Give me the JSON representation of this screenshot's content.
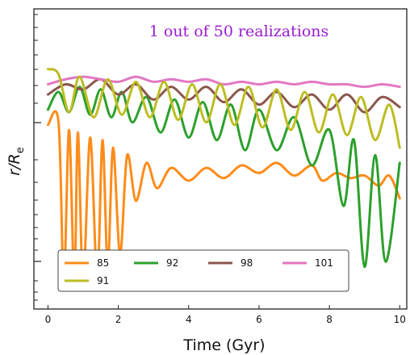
{
  "chart_data": {
    "type": "line",
    "title": "",
    "annotation": "1 out of 50 realizations",
    "annotation_color": "#9b1bd1",
    "xlabel": "Time (Gyr)",
    "ylabel": "r/R_e",
    "ylabel_main": "r/R",
    "ylabel_sub": "e",
    "xlim": [
      -0.4,
      10.2
    ],
    "xticks": [
      0,
      2,
      4,
      6,
      8,
      10
    ],
    "ylim": [
      0,
      1
    ],
    "y_tick_labels_shown": false,
    "grid": false,
    "legend": {
      "position": "bottom-left",
      "ncol": 4
    },
    "series": [
      {
        "name": "85",
        "color": "#ff8c1a",
        "x": [
          0,
          0.3,
          0.45,
          0.6,
          0.75,
          0.85,
          1.0,
          1.2,
          1.4,
          1.55,
          1.7,
          1.85,
          2.05,
          2.25,
          2.5,
          2.8,
          3.1,
          3.5,
          4.0,
          4.5,
          5.0,
          5.5,
          6.0,
          6.5,
          7.0,
          7.5,
          7.8,
          8.2,
          8.6,
          9.0,
          9.4,
          9.7,
          10.0
        ],
        "y": [
          0.66,
          0.67,
          0.04,
          0.64,
          0.03,
          0.63,
          0.04,
          0.61,
          0.05,
          0.6,
          0.1,
          0.57,
          0.15,
          0.54,
          0.36,
          0.51,
          0.41,
          0.49,
          0.44,
          0.49,
          0.45,
          0.5,
          0.47,
          0.51,
          0.46,
          0.5,
          0.44,
          0.47,
          0.45,
          0.46,
          0.42,
          0.46,
          0.37
        ]
      },
      {
        "name": "92",
        "color": "#2ca02c",
        "x": [
          0,
          0.3,
          0.6,
          0.9,
          1.2,
          1.5,
          1.8,
          2.1,
          2.4,
          2.8,
          3.2,
          3.6,
          4.0,
          4.4,
          4.8,
          5.2,
          5.6,
          6.0,
          6.5,
          7.0,
          7.5,
          8.0,
          8.4,
          8.7,
          9.0,
          9.3,
          9.6,
          10.0
        ],
        "y": [
          0.72,
          0.79,
          0.71,
          0.81,
          0.7,
          0.8,
          0.69,
          0.79,
          0.67,
          0.77,
          0.63,
          0.76,
          0.61,
          0.75,
          0.6,
          0.74,
          0.56,
          0.72,
          0.56,
          0.69,
          0.5,
          0.64,
          0.34,
          0.6,
          0.1,
          0.54,
          0.12,
          0.51
        ]
      },
      {
        "name": "98",
        "color": "#8c564b",
        "x": [
          0,
          0.5,
          1.0,
          1.5,
          2.0,
          2.5,
          3.0,
          3.5,
          4.0,
          4.5,
          5.0,
          5.5,
          6.0,
          6.5,
          7.0,
          7.5,
          8.0,
          8.5,
          9.0,
          9.5,
          10.0
        ],
        "y": [
          0.78,
          0.82,
          0.8,
          0.84,
          0.78,
          0.82,
          0.76,
          0.81,
          0.76,
          0.81,
          0.75,
          0.8,
          0.74,
          0.79,
          0.73,
          0.78,
          0.72,
          0.78,
          0.71,
          0.77,
          0.73
        ]
      },
      {
        "name": "101",
        "color": "#e377c2",
        "x": [
          0,
          0.5,
          1.0,
          1.5,
          2.0,
          2.5,
          3.0,
          3.5,
          4.0,
          4.5,
          5.0,
          5.5,
          6.0,
          6.5,
          7.0,
          7.5,
          8.0,
          8.5,
          9.0,
          9.5,
          10.0
        ],
        "y": [
          0.82,
          0.84,
          0.85,
          0.84,
          0.83,
          0.85,
          0.83,
          0.84,
          0.83,
          0.84,
          0.82,
          0.83,
          0.82,
          0.83,
          0.82,
          0.83,
          0.82,
          0.82,
          0.81,
          0.82,
          0.81
        ]
      },
      {
        "name": "91",
        "color": "#bcbd22",
        "x": [
          0,
          0.3,
          0.6,
          0.9,
          1.3,
          1.7,
          2.1,
          2.5,
          2.9,
          3.3,
          3.7,
          4.1,
          4.5,
          4.9,
          5.3,
          5.7,
          6.1,
          6.5,
          6.9,
          7.3,
          7.7,
          8.1,
          8.5,
          8.9,
          9.3,
          9.7,
          10.0
        ],
        "y": [
          0.88,
          0.86,
          0.71,
          0.85,
          0.69,
          0.84,
          0.7,
          0.83,
          0.69,
          0.83,
          0.68,
          0.82,
          0.67,
          0.82,
          0.66,
          0.81,
          0.65,
          0.8,
          0.64,
          0.79,
          0.63,
          0.78,
          0.62,
          0.77,
          0.6,
          0.74,
          0.57
        ]
      }
    ]
  }
}
